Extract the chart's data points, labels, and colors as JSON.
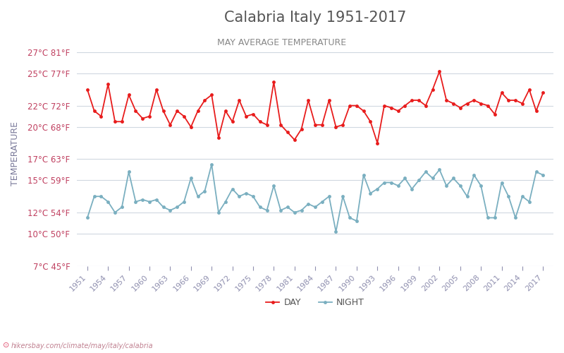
{
  "title": "Calabria Italy 1951-2017",
  "subtitle": "MAY AVERAGE TEMPERATURE",
  "ylabel": "TEMPERATURE",
  "watermark": "hikersbay.com/climate/may/italy/calabria",
  "legend_night": "NIGHT",
  "legend_day": "DAY",
  "years": [
    1951,
    1952,
    1953,
    1954,
    1955,
    1956,
    1957,
    1958,
    1959,
    1960,
    1961,
    1962,
    1963,
    1964,
    1965,
    1966,
    1967,
    1968,
    1969,
    1970,
    1971,
    1972,
    1973,
    1974,
    1975,
    1976,
    1977,
    1978,
    1979,
    1980,
    1981,
    1982,
    1983,
    1984,
    1985,
    1986,
    1987,
    1988,
    1989,
    1990,
    1991,
    1992,
    1993,
    1994,
    1995,
    1996,
    1997,
    1998,
    1999,
    2000,
    2001,
    2002,
    2003,
    2004,
    2005,
    2006,
    2007,
    2008,
    2009,
    2010,
    2011,
    2012,
    2013,
    2014,
    2015,
    2016,
    2017
  ],
  "day": [
    23.5,
    21.5,
    21.0,
    24.0,
    20.5,
    20.5,
    23.0,
    21.5,
    20.8,
    21.0,
    23.5,
    21.5,
    20.2,
    21.5,
    21.0,
    20.0,
    21.5,
    22.5,
    23.0,
    19.0,
    21.5,
    20.5,
    22.5,
    21.0,
    21.2,
    20.5,
    20.2,
    24.2,
    20.2,
    19.5,
    18.8,
    19.8,
    22.5,
    20.2,
    20.2,
    22.5,
    20.0,
    20.2,
    22.0,
    22.0,
    21.5,
    20.5,
    18.5,
    22.0,
    21.8,
    21.5,
    22.0,
    22.5,
    22.5,
    22.0,
    23.5,
    25.2,
    22.5,
    22.2,
    21.8,
    22.2,
    22.5,
    22.2,
    22.0,
    21.2,
    23.2,
    22.5,
    22.5,
    22.2,
    23.5,
    21.5,
    23.2
  ],
  "night": [
    11.5,
    13.5,
    13.5,
    13.0,
    12.0,
    12.5,
    15.8,
    13.0,
    13.2,
    13.0,
    13.2,
    12.5,
    12.2,
    12.5,
    13.0,
    15.2,
    13.5,
    14.0,
    16.5,
    12.0,
    13.0,
    14.2,
    13.5,
    13.8,
    13.5,
    12.5,
    12.2,
    14.5,
    12.2,
    12.5,
    12.0,
    12.2,
    12.8,
    12.5,
    13.0,
    13.5,
    10.2,
    13.5,
    11.5,
    11.2,
    15.5,
    13.8,
    14.2,
    14.8,
    14.8,
    14.5,
    15.2,
    14.2,
    15.0,
    15.8,
    15.2,
    16.0,
    14.5,
    15.2,
    14.5,
    13.5,
    15.5,
    14.5,
    11.5,
    11.5,
    14.8,
    13.5,
    11.5,
    13.5,
    13.0,
    15.8,
    15.5
  ],
  "day_color": "#e81c1c",
  "night_color": "#7aafc0",
  "background_color": "#ffffff",
  "grid_color": "#d0d8e0",
  "title_color": "#555555",
  "subtitle_color": "#888888",
  "ylabel_color": "#7a7a9a",
  "tick_label_color": "#c04060",
  "x_tick_color": "#9090b0",
  "ylim": [
    7,
    28
  ],
  "yticks_c": [
    7,
    10,
    12,
    15,
    17,
    20,
    22,
    25,
    27
  ],
  "yticks_f": [
    45,
    50,
    54,
    59,
    63,
    68,
    72,
    77,
    81
  ],
  "figsize": [
    8.0,
    5.0
  ],
  "dpi": 100
}
